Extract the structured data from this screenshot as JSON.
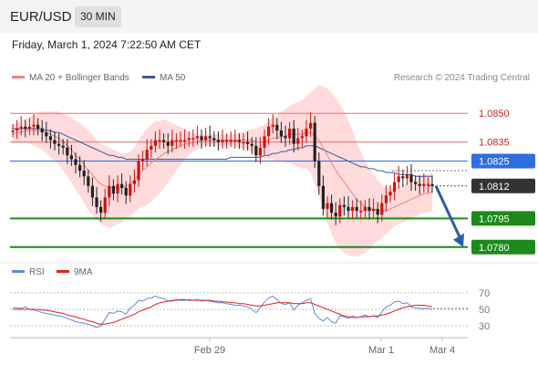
{
  "header": {
    "symbol": "EUR/USD",
    "timeframe": "30 MIN"
  },
  "datetime": "Friday, March 1, 2024 7:22:50 AM CET",
  "legend": {
    "ma20": "MA 20 + Bollinger Bands",
    "ma50": "MA 50",
    "credit": "Research © 2024 Trading Central",
    "rsi": "RSI",
    "ma9": "9MA"
  },
  "colors": {
    "ma20": "#f08080",
    "ma50": "#3a5a9a",
    "band": "#ffd5d5",
    "up": "#cc1111",
    "down": "#222222",
    "resistance": "#ef6b6b",
    "pivot": "#2e6ee0",
    "support": "#1c8a1c",
    "current": "#333333",
    "arrow": "#2a5ca8",
    "rsi": "#5b8ae0",
    "ma9": "#dd2222"
  },
  "levels": [
    {
      "label": "1.0850",
      "price": 1.085,
      "type": "resistance"
    },
    {
      "label": "1.0835",
      "price": 1.0835,
      "type": "resistance"
    },
    {
      "label": "1.0825",
      "price": 1.0825,
      "type": "pivot"
    },
    {
      "label": "1.0812",
      "price": 1.0812,
      "type": "current"
    },
    {
      "label": "1.0795",
      "price": 1.0795,
      "type": "support"
    },
    {
      "label": "1.0780",
      "price": 1.078,
      "type": "support"
    }
  ],
  "xaxis": {
    "labels": [
      "Feb 29",
      "Mar 1",
      "Mar 4"
    ]
  },
  "rsi_axis": {
    "labels": [
      "70",
      "50",
      "30"
    ]
  },
  "chart_data": {
    "type": "candlestick",
    "ylim": [
      1.0776,
      1.0856
    ],
    "closes": [
      1.0841,
      1.0842,
      1.0843,
      1.0842,
      1.0843,
      1.0844,
      1.0842,
      1.084,
      1.0838,
      1.0836,
      1.0834,
      1.0833,
      1.0832,
      1.0828,
      1.0826,
      1.0823,
      1.082,
      1.0817,
      1.0812,
      1.0806,
      1.0801,
      1.0798,
      1.0806,
      1.0812,
      1.0808,
      1.0813,
      1.0811,
      1.0807,
      1.0813,
      1.0815,
      1.0825,
      1.0826,
      1.0831,
      1.0833,
      1.0836,
      1.0836,
      1.0835,
      1.0833,
      1.0836,
      1.0836,
      1.0836,
      1.0836,
      1.0837,
      1.0837,
      1.0838,
      1.0836,
      1.0838,
      1.0837,
      1.0836,
      1.0835,
      1.0836,
      1.0836,
      1.0836,
      1.0836,
      1.0835,
      1.0835,
      1.0834,
      1.0833,
      1.0828,
      1.0832,
      1.0838,
      1.0843,
      1.0844,
      1.0841,
      1.0838,
      1.0837,
      1.0842,
      1.0834,
      1.0837,
      1.0838,
      1.0842,
      1.0845,
      1.0825,
      1.0812,
      1.08,
      1.0803,
      1.0798,
      1.0796,
      1.0802,
      1.0801,
      1.0799,
      1.0801,
      1.0799,
      1.0799,
      1.0801,
      1.0799,
      1.08,
      1.0797,
      1.0803,
      1.0807,
      1.0809,
      1.0814,
      1.0817,
      1.0816,
      1.0818,
      1.0814,
      1.0813,
      1.0812,
      1.0813,
      1.0813,
      1.0812
    ],
    "ma20": [
      1.0839,
      1.084,
      1.084,
      1.0841,
      1.0841,
      1.0841,
      1.0841,
      1.0841,
      1.084,
      1.0839,
      1.0838,
      1.0837,
      1.0835,
      1.0833,
      1.0831,
      1.0828,
      1.0826,
      1.0823,
      1.082,
      1.0818,
      1.0815,
      1.0813,
      1.0812,
      1.0811,
      1.0811,
      1.0811,
      1.0811,
      1.0812,
      1.0813,
      1.0815,
      1.0818,
      1.082,
      1.0822,
      1.0824,
      1.0826,
      1.0827,
      1.0829,
      1.083,
      1.0831,
      1.0832,
      1.0833,
      1.0834,
      1.0834,
      1.0835,
      1.0835,
      1.0836,
      1.0836,
      1.0836,
      1.0836,
      1.0836,
      1.0836,
      1.0836,
      1.0836,
      1.0836,
      1.0836,
      1.0836,
      1.0836,
      1.0836,
      1.0835,
      1.0835,
      1.0835,
      1.0836,
      1.0837,
      1.0837,
      1.0838,
      1.0838,
      1.0839,
      1.0839,
      1.0839,
      1.0839,
      1.084,
      1.084,
      1.0838,
      1.0836,
      1.0832,
      1.0828,
      1.0824,
      1.082,
      1.0817,
      1.0814,
      1.0811,
      1.0808,
      1.0805,
      1.0803,
      1.0801,
      1.08,
      1.08,
      1.0799,
      1.0799,
      1.0799,
      1.08,
      1.0801,
      1.0802,
      1.0803,
      1.0804,
      1.0805,
      1.0806,
      1.0807,
      1.0808,
      1.0808,
      1.0809
    ],
    "ma50": [
      1.0842,
      1.0842,
      1.0842,
      1.0842,
      1.0842,
      1.0842,
      1.0842,
      1.0842,
      1.0841,
      1.0841,
      1.084,
      1.084,
      1.0839,
      1.0838,
      1.0837,
      1.0836,
      1.0835,
      1.0834,
      1.0833,
      1.0832,
      1.0831,
      1.083,
      1.0829,
      1.0828,
      1.0828,
      1.0827,
      1.0827,
      1.0826,
      1.0826,
      1.0826,
      1.0826,
      1.0826,
      1.0826,
      1.0826,
      1.0826,
      1.0826,
      1.0826,
      1.0826,
      1.0826,
      1.0826,
      1.0826,
      1.0826,
      1.0826,
      1.0826,
      1.0826,
      1.0826,
      1.0826,
      1.0826,
      1.0826,
      1.0826,
      1.0826,
      1.0826,
      1.0827,
      1.0827,
      1.0827,
      1.0827,
      1.0827,
      1.0827,
      1.0827,
      1.0827,
      1.0828,
      1.0828,
      1.0829,
      1.0829,
      1.083,
      1.083,
      1.0831,
      1.0831,
      1.0832,
      1.0832,
      1.0833,
      1.0833,
      1.0833,
      1.0832,
      1.0831,
      1.083,
      1.0829,
      1.0828,
      1.0827,
      1.0826,
      1.0825,
      1.0824,
      1.0823,
      1.0822,
      1.0822,
      1.0821,
      1.0821,
      1.082,
      1.082,
      1.0819,
      1.0819,
      1.0819,
      1.0818,
      1.0818,
      1.0818,
      1.0818,
      1.0817,
      1.0817,
      1.0817,
      1.0817,
      1.0817
    ],
    "band_width": [
      0.0005,
      0.0005,
      0.0006,
      0.0006,
      0.0007,
      0.0008,
      0.0009,
      0.001,
      0.0011,
      0.0012,
      0.0013,
      0.0014,
      0.0015,
      0.0016,
      0.0017,
      0.0018,
      0.0019,
      0.002,
      0.0021,
      0.0021,
      0.0021,
      0.0021,
      0.0021,
      0.0021,
      0.002,
      0.0019,
      0.0018,
      0.0017,
      0.0017,
      0.0017,
      0.0018,
      0.0019,
      0.002,
      0.002,
      0.002,
      0.0019,
      0.0018,
      0.0016,
      0.0014,
      0.0012,
      0.001,
      0.0008,
      0.0006,
      0.0005,
      0.0004,
      0.0003,
      0.0003,
      0.0003,
      0.0003,
      0.0003,
      0.0003,
      0.0003,
      0.0003,
      0.0003,
      0.0004,
      0.0004,
      0.0005,
      0.0006,
      0.0007,
      0.0008,
      0.0009,
      0.001,
      0.0011,
      0.0012,
      0.0013,
      0.0014,
      0.0015,
      0.0016,
      0.0017,
      0.0018,
      0.0019,
      0.0021,
      0.0025,
      0.0029,
      0.0032,
      0.0035,
      0.0037,
      0.0038,
      0.0038,
      0.0037,
      0.0035,
      0.0033,
      0.003,
      0.0027,
      0.0024,
      0.0021,
      0.0018,
      0.0016,
      0.0014,
      0.0012,
      0.0011,
      0.001,
      0.001,
      0.001,
      0.001,
      0.001,
      0.001,
      0.001,
      0.001,
      0.001,
      0.001
    ],
    "rsi": [
      52,
      52,
      51,
      53,
      50,
      49,
      48,
      46,
      45,
      44,
      43,
      42,
      41,
      39,
      37,
      35,
      34,
      33,
      32,
      30,
      28,
      30,
      38,
      46,
      45,
      48,
      47,
      44,
      52,
      55,
      61,
      60,
      63,
      64,
      66,
      64,
      63,
      60,
      60,
      62,
      61,
      61,
      62,
      61,
      62,
      60,
      61,
      60,
      59,
      58,
      58,
      57,
      56,
      55,
      55,
      54,
      53,
      50,
      46,
      52,
      59,
      64,
      66,
      62,
      57,
      56,
      58,
      49,
      55,
      58,
      61,
      63,
      45,
      39,
      36,
      40,
      35,
      33,
      42,
      41,
      39,
      42,
      40,
      41,
      43,
      41,
      42,
      40,
      47,
      53,
      55,
      59,
      60,
      57,
      58,
      53,
      52,
      51,
      51,
      51,
      50
    ],
    "rsi_ma9": [
      50,
      50,
      50,
      50,
      50,
      50,
      50,
      49,
      49,
      48,
      47,
      46,
      45,
      43,
      42,
      41,
      39,
      38,
      36,
      35,
      33,
      32,
      32,
      33,
      34,
      36,
      38,
      40,
      42,
      44,
      47,
      49,
      51,
      53,
      56,
      58,
      59,
      60,
      61,
      61,
      62,
      62,
      61,
      61,
      61,
      61,
      61,
      61,
      60,
      60,
      59,
      59,
      58,
      58,
      57,
      57,
      56,
      55,
      54,
      54,
      55,
      56,
      57,
      58,
      58,
      58,
      58,
      57,
      57,
      57,
      58,
      58,
      56,
      54,
      52,
      50,
      48,
      46,
      44,
      42,
      41,
      40,
      40,
      41,
      41,
      41,
      42,
      42,
      43,
      44,
      46,
      48,
      50,
      52,
      53,
      54,
      55,
      55,
      55,
      54,
      53
    ],
    "rsi_ylim": [
      20,
      80
    ]
  }
}
